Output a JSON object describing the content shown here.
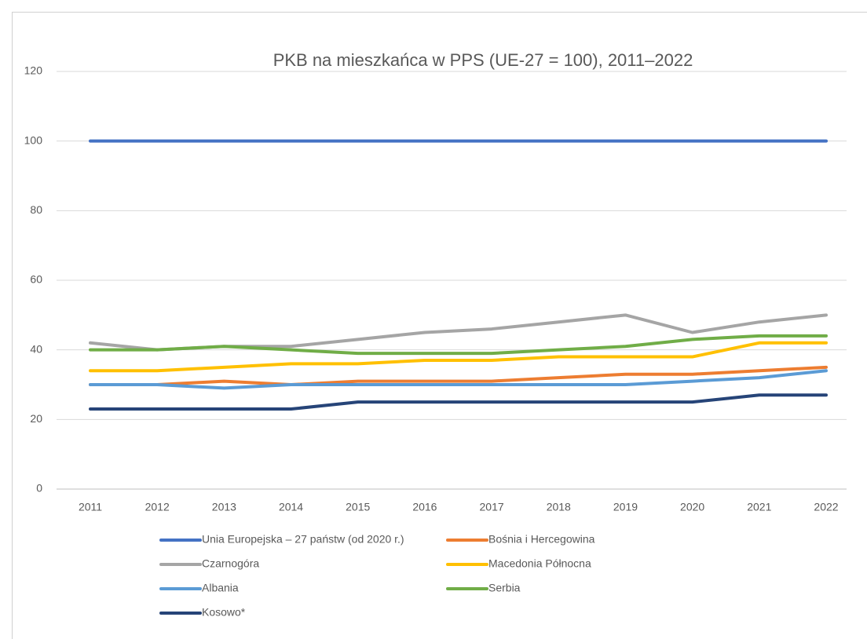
{
  "chart_data": {
    "type": "line",
    "title": "PKB na mieszkańca w PPS (UE-27 = 100), 2011–2022",
    "categories": [
      "2011",
      "2012",
      "2013",
      "2014",
      "2015",
      "2016",
      "2017",
      "2018",
      "2019",
      "2020",
      "2021",
      "2022"
    ],
    "ylim": [
      0,
      120
    ],
    "yticks": [
      0,
      20,
      40,
      60,
      80,
      100,
      120
    ],
    "grid": true,
    "legend": "bottom",
    "series": [
      {
        "name": "Unia Europejska – 27 państw (od 2020 r.)",
        "color": "#4472c4",
        "values": [
          100,
          100,
          100,
          100,
          100,
          100,
          100,
          100,
          100,
          100,
          100,
          100
        ]
      },
      {
        "name": "Bośnia i Hercegowina",
        "color": "#ed7d31",
        "values": [
          30,
          30,
          31,
          30,
          31,
          31,
          31,
          32,
          33,
          33,
          34,
          35
        ]
      },
      {
        "name": "Czarnogóra",
        "color": "#a5a5a5",
        "values": [
          42,
          40,
          41,
          41,
          43,
          45,
          46,
          48,
          50,
          45,
          48,
          50
        ]
      },
      {
        "name": "Macedonia Północna",
        "color": "#ffc000",
        "values": [
          34,
          34,
          35,
          36,
          36,
          37,
          37,
          38,
          38,
          38,
          42,
          42
        ]
      },
      {
        "name": "Albania",
        "color": "#5b9bd5",
        "values": [
          30,
          30,
          29,
          30,
          30,
          30,
          30,
          30,
          30,
          31,
          32,
          34
        ]
      },
      {
        "name": "Serbia",
        "color": "#70ad47",
        "values": [
          40,
          40,
          41,
          40,
          39,
          39,
          39,
          40,
          41,
          43,
          44,
          44
        ]
      },
      {
        "name": "Kosowo*",
        "color": "#264478",
        "values": [
          23,
          23,
          23,
          23,
          25,
          25,
          25,
          25,
          25,
          25,
          27,
          27
        ]
      }
    ]
  }
}
